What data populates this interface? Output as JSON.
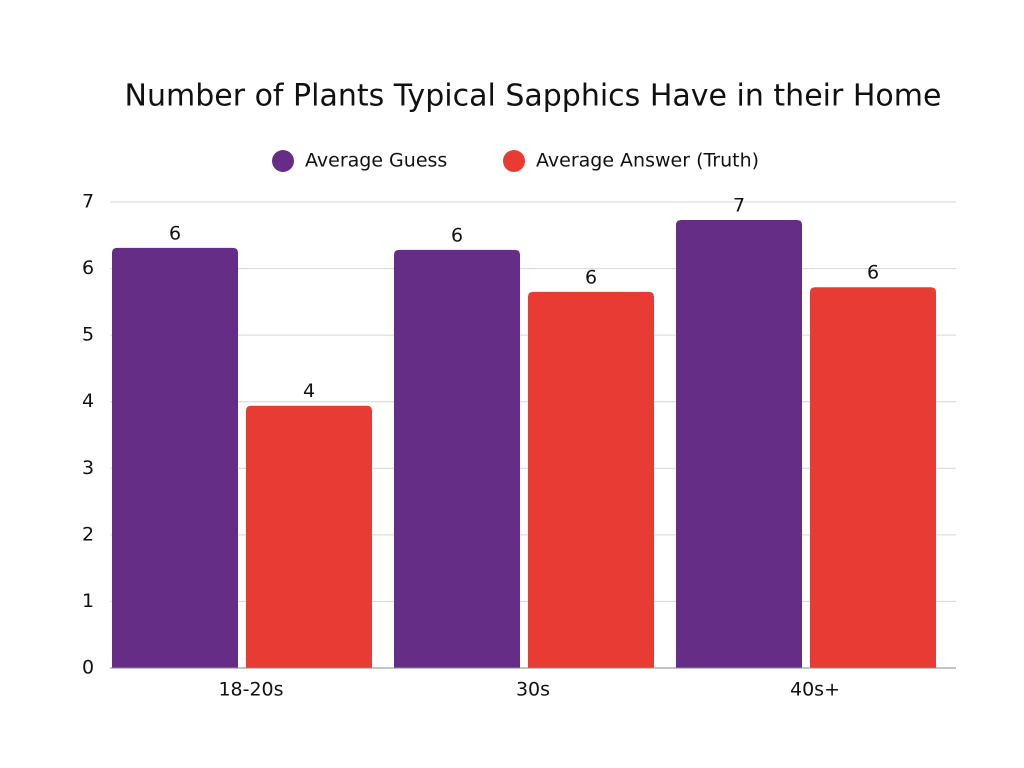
{
  "chart_data": {
    "type": "bar",
    "title": "Number of Plants Typical Sapphics Have in their Home",
    "categories": [
      "18-20s",
      "30s",
      "40s+"
    ],
    "series": [
      {
        "name": "Average Guess",
        "color": "#652d86",
        "values": [
          6.31,
          6.28,
          6.73
        ],
        "value_labels": [
          "6",
          "6",
          "7"
        ]
      },
      {
        "name": "Average Answer (Truth)",
        "color": "#e83b33",
        "values": [
          3.94,
          5.65,
          5.72
        ],
        "value_labels": [
          "4",
          "6",
          "6"
        ]
      }
    ],
    "ylim": [
      0,
      7
    ],
    "yticks": [
      0,
      1,
      2,
      3,
      4,
      5,
      6,
      7
    ],
    "grid": true,
    "legend": "top"
  }
}
